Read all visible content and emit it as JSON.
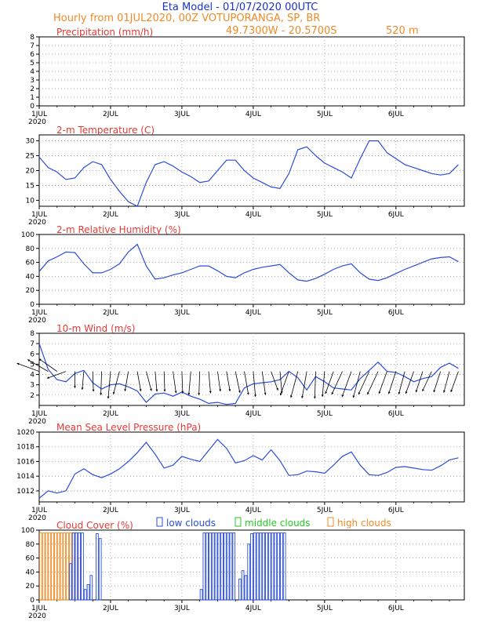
{
  "header": {
    "title": "Eta Model - 01/07/2020 00UTC",
    "subtitle": "Hourly from 01JUL2020, 00Z  VOTUPORANGA, SP, BR",
    "coords": "49.7300W - 20.5700S",
    "elevation": "520  m"
  },
  "colors": {
    "title": "#1a33cc",
    "orange": "#f08a24",
    "red": "#e53935",
    "line": "#2a4dd8",
    "green": "#22cc22",
    "grid": "#999999"
  },
  "x_axis": {
    "labels": [
      "1JUL",
      "2JUL",
      "3JUL",
      "4JUL",
      "5JUL",
      "6JUL"
    ],
    "year": "2020"
  },
  "legend": {
    "low": "low clouds",
    "middle": "middle clouds",
    "high": "high clouds"
  },
  "chart_data": [
    {
      "id": "precip",
      "type": "line",
      "title": "Precipitation (mm/h)",
      "ylim": [
        0,
        8
      ],
      "yticks": [
        0,
        1,
        2,
        3,
        4,
        5,
        6,
        7,
        8
      ],
      "ytick_labels": [
        "0",
        "1",
        "2",
        "3",
        "4",
        "5",
        "6",
        "7",
        "8"
      ],
      "x": [],
      "values": []
    },
    {
      "id": "temp",
      "type": "line",
      "title": "2-m Temperature (C)",
      "ylim": [
        8,
        32
      ],
      "yticks": [
        10,
        15,
        20,
        25,
        30
      ],
      "ytick_labels": [
        "10",
        "15",
        "20",
        "25",
        "30"
      ],
      "x": [
        0,
        3,
        6,
        9,
        12,
        15,
        18,
        21,
        24,
        27,
        30,
        33,
        36,
        39,
        42,
        45,
        48,
        51,
        54,
        57,
        60,
        63,
        66,
        69,
        72,
        75,
        78,
        81,
        84,
        87,
        90,
        93,
        96,
        99,
        102,
        105,
        108,
        111,
        114,
        117,
        120,
        123,
        126,
        129,
        132,
        135,
        138,
        141
      ],
      "values": [
        24.5,
        21,
        19.5,
        17,
        17.5,
        21,
        23,
        22,
        17,
        13,
        9.5,
        8,
        16,
        22,
        23,
        21.5,
        19.5,
        18,
        16,
        16.5,
        20,
        23.5,
        23.5,
        20,
        17.5,
        16,
        14.5,
        14,
        19,
        27,
        28,
        25,
        22.5,
        21,
        19.5,
        17.5,
        24,
        30,
        30,
        26,
        24,
        22,
        21,
        20,
        19,
        18.5,
        19,
        22
      ]
    },
    {
      "id": "rh",
      "type": "line",
      "title": "2-m Relative Humidity (%)",
      "ylim": [
        0,
        100
      ],
      "yticks": [
        0,
        20,
        40,
        60,
        80,
        100
      ],
      "ytick_labels": [
        "0",
        "20",
        "40",
        "60",
        "80",
        "100"
      ],
      "x": [
        0,
        3,
        6,
        9,
        12,
        15,
        18,
        21,
        24,
        27,
        30,
        33,
        36,
        39,
        42,
        45,
        48,
        51,
        54,
        57,
        60,
        63,
        66,
        69,
        72,
        75,
        78,
        81,
        84,
        87,
        90,
        93,
        96,
        99,
        102,
        105,
        108,
        111,
        114,
        117,
        120,
        123,
        126,
        129,
        132,
        135,
        138,
        141
      ],
      "values": [
        47,
        62,
        68,
        75,
        74,
        58,
        45,
        45,
        50,
        58,
        75,
        86,
        55,
        36,
        38,
        42,
        45,
        50,
        55,
        55,
        48,
        40,
        38,
        45,
        50,
        53,
        55,
        57,
        45,
        35,
        33,
        37,
        43,
        50,
        55,
        58,
        45,
        36,
        34,
        38,
        44,
        50,
        55,
        60,
        65,
        67,
        68,
        61
      ]
    },
    {
      "id": "wind",
      "type": "line",
      "title": "10-m Wind (m/s)",
      "ylim": [
        1,
        8
      ],
      "yticks": [
        2,
        3,
        4,
        5,
        6,
        7,
        8
      ],
      "ytick_labels": [
        "2",
        "3",
        "4",
        "5",
        "6",
        "7",
        "8"
      ],
      "x": [
        0,
        3,
        6,
        9,
        12,
        15,
        18,
        21,
        24,
        27,
        30,
        33,
        36,
        39,
        42,
        45,
        48,
        51,
        54,
        57,
        60,
        63,
        66,
        69,
        72,
        75,
        78,
        81,
        84,
        87,
        90,
        93,
        96,
        99,
        102,
        105,
        108,
        111,
        114,
        117,
        120,
        123,
        126,
        129,
        132,
        135,
        138,
        141
      ],
      "values": [
        7,
        4.5,
        3.5,
        3.3,
        4.1,
        4.4,
        3.2,
        2.6,
        3,
        3.1,
        2.8,
        2.4,
        1.3,
        2.1,
        2.2,
        1.9,
        2.3,
        1.9,
        1.6,
        1.2,
        1.3,
        1.1,
        1.2,
        2.7,
        3.1,
        3.2,
        3.3,
        3.5,
        4.3,
        3.7,
        2.5,
        3.8,
        3.3,
        2.7,
        2.6,
        2.5,
        3.6,
        4.4,
        5.2,
        4.3,
        4.2,
        3.8,
        3.3,
        3.6,
        3.8,
        4.7,
        5.1,
        4.6
      ],
      "barb_dirs": [
        290,
        300,
        305,
        250,
        180,
        185,
        178,
        182,
        185,
        195,
        190,
        170,
        165,
        175,
        178,
        172,
        178,
        185,
        182,
        175,
        172,
        170,
        168,
        170,
        175,
        172,
        160,
        175,
        200,
        195,
        190,
        182,
        185,
        200,
        205,
        200,
        195,
        205,
        205,
        200,
        198,
        195,
        200,
        198,
        205,
        198,
        195,
        200
      ],
      "barb_speeds": [
        4.5,
        4.5,
        4,
        3.5,
        2.5,
        3,
        3.5,
        4.5,
        5.5,
        4.5,
        3.5,
        3.5,
        3.5,
        3.5,
        3.5,
        4,
        4,
        4.5,
        4.5,
        4,
        3.5,
        3.5,
        4,
        4.5,
        5,
        4.5,
        3.5,
        4,
        5,
        5.5,
        5.5,
        5.5,
        5,
        4.5,
        5,
        5.5,
        5.5,
        5,
        5,
        4.5,
        4.5,
        4.5,
        4.5,
        4,
        4,
        4,
        4,
        4
      ]
    },
    {
      "id": "mslp",
      "type": "line",
      "title": "Mean Sea Level Pressure (hPa)",
      "ylim": [
        1010.5,
        1020
      ],
      "yticks": [
        1012,
        1014,
        1016,
        1018,
        1020
      ],
      "ytick_labels": [
        "1012",
        "1014",
        "1016",
        "1018",
        "1020"
      ],
      "x": [
        0,
        3,
        6,
        9,
        12,
        15,
        18,
        21,
        24,
        27,
        30,
        33,
        36,
        39,
        42,
        45,
        48,
        51,
        54,
        57,
        60,
        63,
        66,
        69,
        72,
        75,
        78,
        81,
        84,
        87,
        90,
        93,
        96,
        99,
        102,
        105,
        108,
        111,
        114,
        117,
        120,
        123,
        126,
        129,
        132,
        135,
        138,
        141
      ],
      "values": [
        1011,
        1012,
        1011.7,
        1012,
        1014.3,
        1015,
        1014.2,
        1013.8,
        1014.3,
        1015,
        1016,
        1017.2,
        1018.6,
        1017,
        1015.1,
        1015.5,
        1016.7,
        1016.3,
        1016,
        1017.5,
        1019,
        1017.8,
        1015.8,
        1016.1,
        1016.8,
        1016.2,
        1017.6,
        1016.1,
        1014.1,
        1014.2,
        1014.7,
        1014.6,
        1014.4,
        1015.5,
        1016.7,
        1017.3,
        1015.5,
        1014.2,
        1014.1,
        1014.5,
        1015.2,
        1015.3,
        1015.1,
        1014.9,
        1014.8,
        1015.4,
        1016.2,
        1016.5
      ]
    },
    {
      "id": "cloud",
      "type": "bar",
      "title": "Cloud Cover (%)",
      "ylim": [
        0,
        100
      ],
      "yticks": [
        0,
        20,
        40,
        60,
        80,
        100
      ],
      "ytick_labels": [
        "0",
        "20",
        "40",
        "60",
        "80",
        "100"
      ],
      "low_x": [
        10,
        11,
        12,
        13,
        14,
        15,
        16,
        17,
        18,
        19,
        20,
        21,
        54,
        55,
        56,
        57,
        58,
        59,
        60,
        61,
        62,
        63,
        64,
        65,
        66,
        67,
        68,
        69,
        70,
        71,
        72,
        73,
        74,
        75,
        76,
        77,
        78,
        79,
        80,
        81,
        82,
        83,
        84,
        85
      ],
      "low_values": [
        52,
        96,
        96,
        96,
        96,
        15,
        22,
        35,
        0,
        95,
        88,
        0,
        15,
        96,
        96,
        96,
        96,
        96,
        96,
        96,
        96,
        96,
        96,
        96,
        0,
        30,
        42,
        35,
        80,
        95,
        96,
        96,
        96,
        96,
        96,
        96,
        96,
        96,
        96,
        96,
        96,
        0,
        0,
        0
      ],
      "high_x": [
        0,
        1,
        2,
        3,
        4,
        5,
        6,
        7,
        8,
        9,
        10,
        11,
        12,
        13
      ],
      "high_values": [
        96,
        96,
        96,
        96,
        96,
        96,
        96,
        96,
        96,
        96,
        96,
        96,
        96,
        60
      ]
    }
  ]
}
